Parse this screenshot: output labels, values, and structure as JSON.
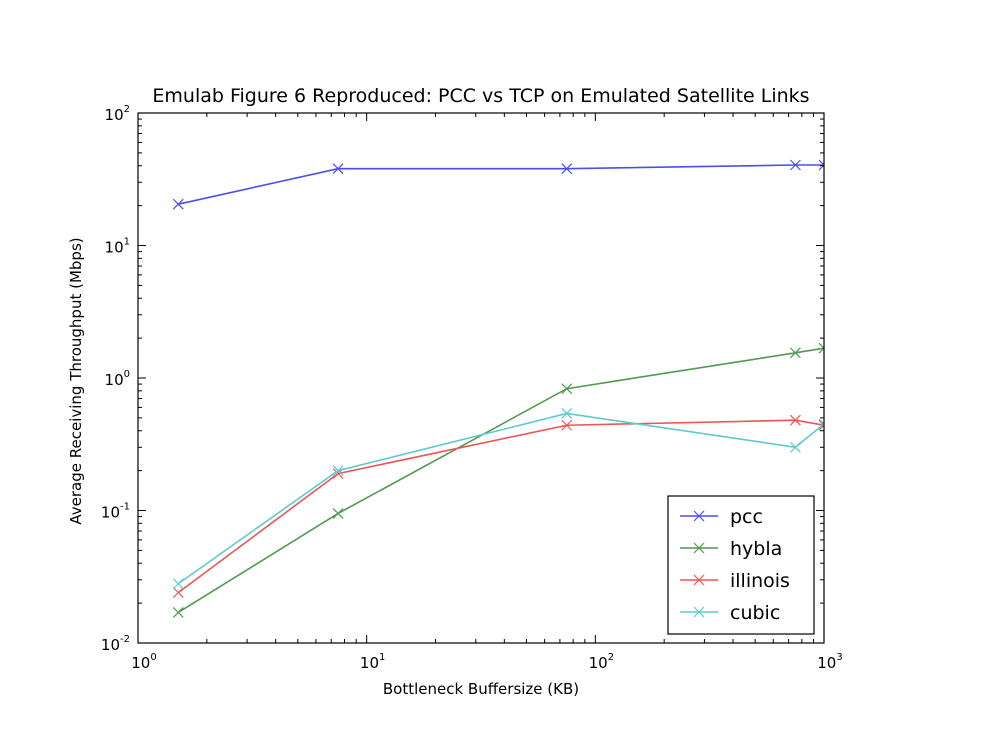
{
  "chart_data": {
    "type": "line",
    "title": "Emulab Figure 6 Reproduced: PCC vs TCP on Emulated Satellite Links",
    "xlabel": "Bottleneck Buffersize (KB)",
    "ylabel": "Average Receiving Throughput (Mbps)",
    "xscale": "log",
    "yscale": "log",
    "xlim": [
      1,
      1000
    ],
    "ylim": [
      0.01,
      100
    ],
    "x_ticks": [
      {
        "value": 1,
        "base": "10",
        "exp": "0"
      },
      {
        "value": 10,
        "base": "10",
        "exp": "1"
      },
      {
        "value": 100,
        "base": "10",
        "exp": "2"
      },
      {
        "value": 1000,
        "base": "10",
        "exp": "3"
      }
    ],
    "y_ticks": [
      {
        "value": 0.01,
        "base": "10",
        "exp": "-2"
      },
      {
        "value": 0.1,
        "base": "10",
        "exp": "-1"
      },
      {
        "value": 1,
        "base": "10",
        "exp": "0"
      },
      {
        "value": 10,
        "base": "10",
        "exp": "1"
      },
      {
        "value": 100,
        "base": "10",
        "exp": "2"
      }
    ],
    "grid": false,
    "legend_position": "lower-right",
    "marker": "x",
    "x": [
      1.5,
      7.5,
      75,
      750,
      1000
    ],
    "series": [
      {
        "name": "pcc",
        "color": "#4a4ef2",
        "values": [
          20.5,
          38,
          38,
          40.5,
          40.5
        ]
      },
      {
        "name": "hybla",
        "color": "#4f9a4f",
        "values": [
          0.017,
          0.095,
          0.83,
          1.55,
          1.68
        ]
      },
      {
        "name": "illinois",
        "color": "#ee5454",
        "values": [
          0.024,
          0.19,
          0.44,
          0.48,
          0.44
        ]
      },
      {
        "name": "cubic",
        "color": "#5ccbcb",
        "values": [
          0.028,
          0.2,
          0.54,
          0.3,
          0.45
        ]
      }
    ]
  }
}
